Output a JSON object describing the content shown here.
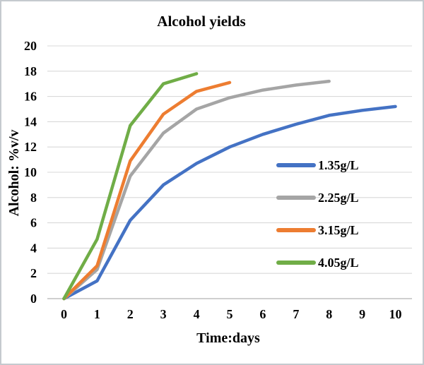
{
  "window": {
    "background": "#ffffff",
    "border_color": "#c5cacf",
    "gridline_color": "#d9d9d9",
    "axisline_color": "#bfbfbf"
  },
  "chart_data": {
    "type": "line",
    "title": "Alcohol yields",
    "xlabel": "Time:days",
    "ylabel": "Alcohol: %v/v",
    "xlim": [
      0,
      10
    ],
    "ylim": [
      0,
      20
    ],
    "x_ticks": [
      0,
      1,
      2,
      3,
      4,
      5,
      6,
      7,
      8,
      9,
      10
    ],
    "y_ticks": [
      0,
      2,
      4,
      6,
      8,
      10,
      12,
      14,
      16,
      18,
      20
    ],
    "grid": "horizontal",
    "legend_position": "inside-right",
    "series": [
      {
        "name": "1.35g/L",
        "color": "#4472C4",
        "x": [
          0,
          1,
          2,
          3,
          4,
          5,
          6,
          7,
          8,
          9,
          10
        ],
        "y": [
          0,
          1.4,
          6.2,
          9.0,
          10.7,
          12.0,
          13.0,
          13.8,
          14.5,
          14.9,
          15.2
        ]
      },
      {
        "name": "2.25g/L",
        "color": "#A5A5A5",
        "x": [
          0,
          1,
          2,
          3,
          4,
          5,
          6,
          7,
          8
        ],
        "y": [
          0,
          2.3,
          9.7,
          13.1,
          15.0,
          15.9,
          16.5,
          16.9,
          17.2
        ]
      },
      {
        "name": "3.15g/L",
        "color": "#ED7D31",
        "x": [
          0,
          1,
          2,
          3,
          4,
          5
        ],
        "y": [
          0,
          2.6,
          10.9,
          14.6,
          16.4,
          17.1
        ]
      },
      {
        "name": "4.05g/L",
        "color": "#70AD47",
        "x": [
          0,
          1,
          2,
          3,
          4
        ],
        "y": [
          0,
          4.7,
          13.7,
          17.0,
          17.8
        ]
      }
    ]
  }
}
